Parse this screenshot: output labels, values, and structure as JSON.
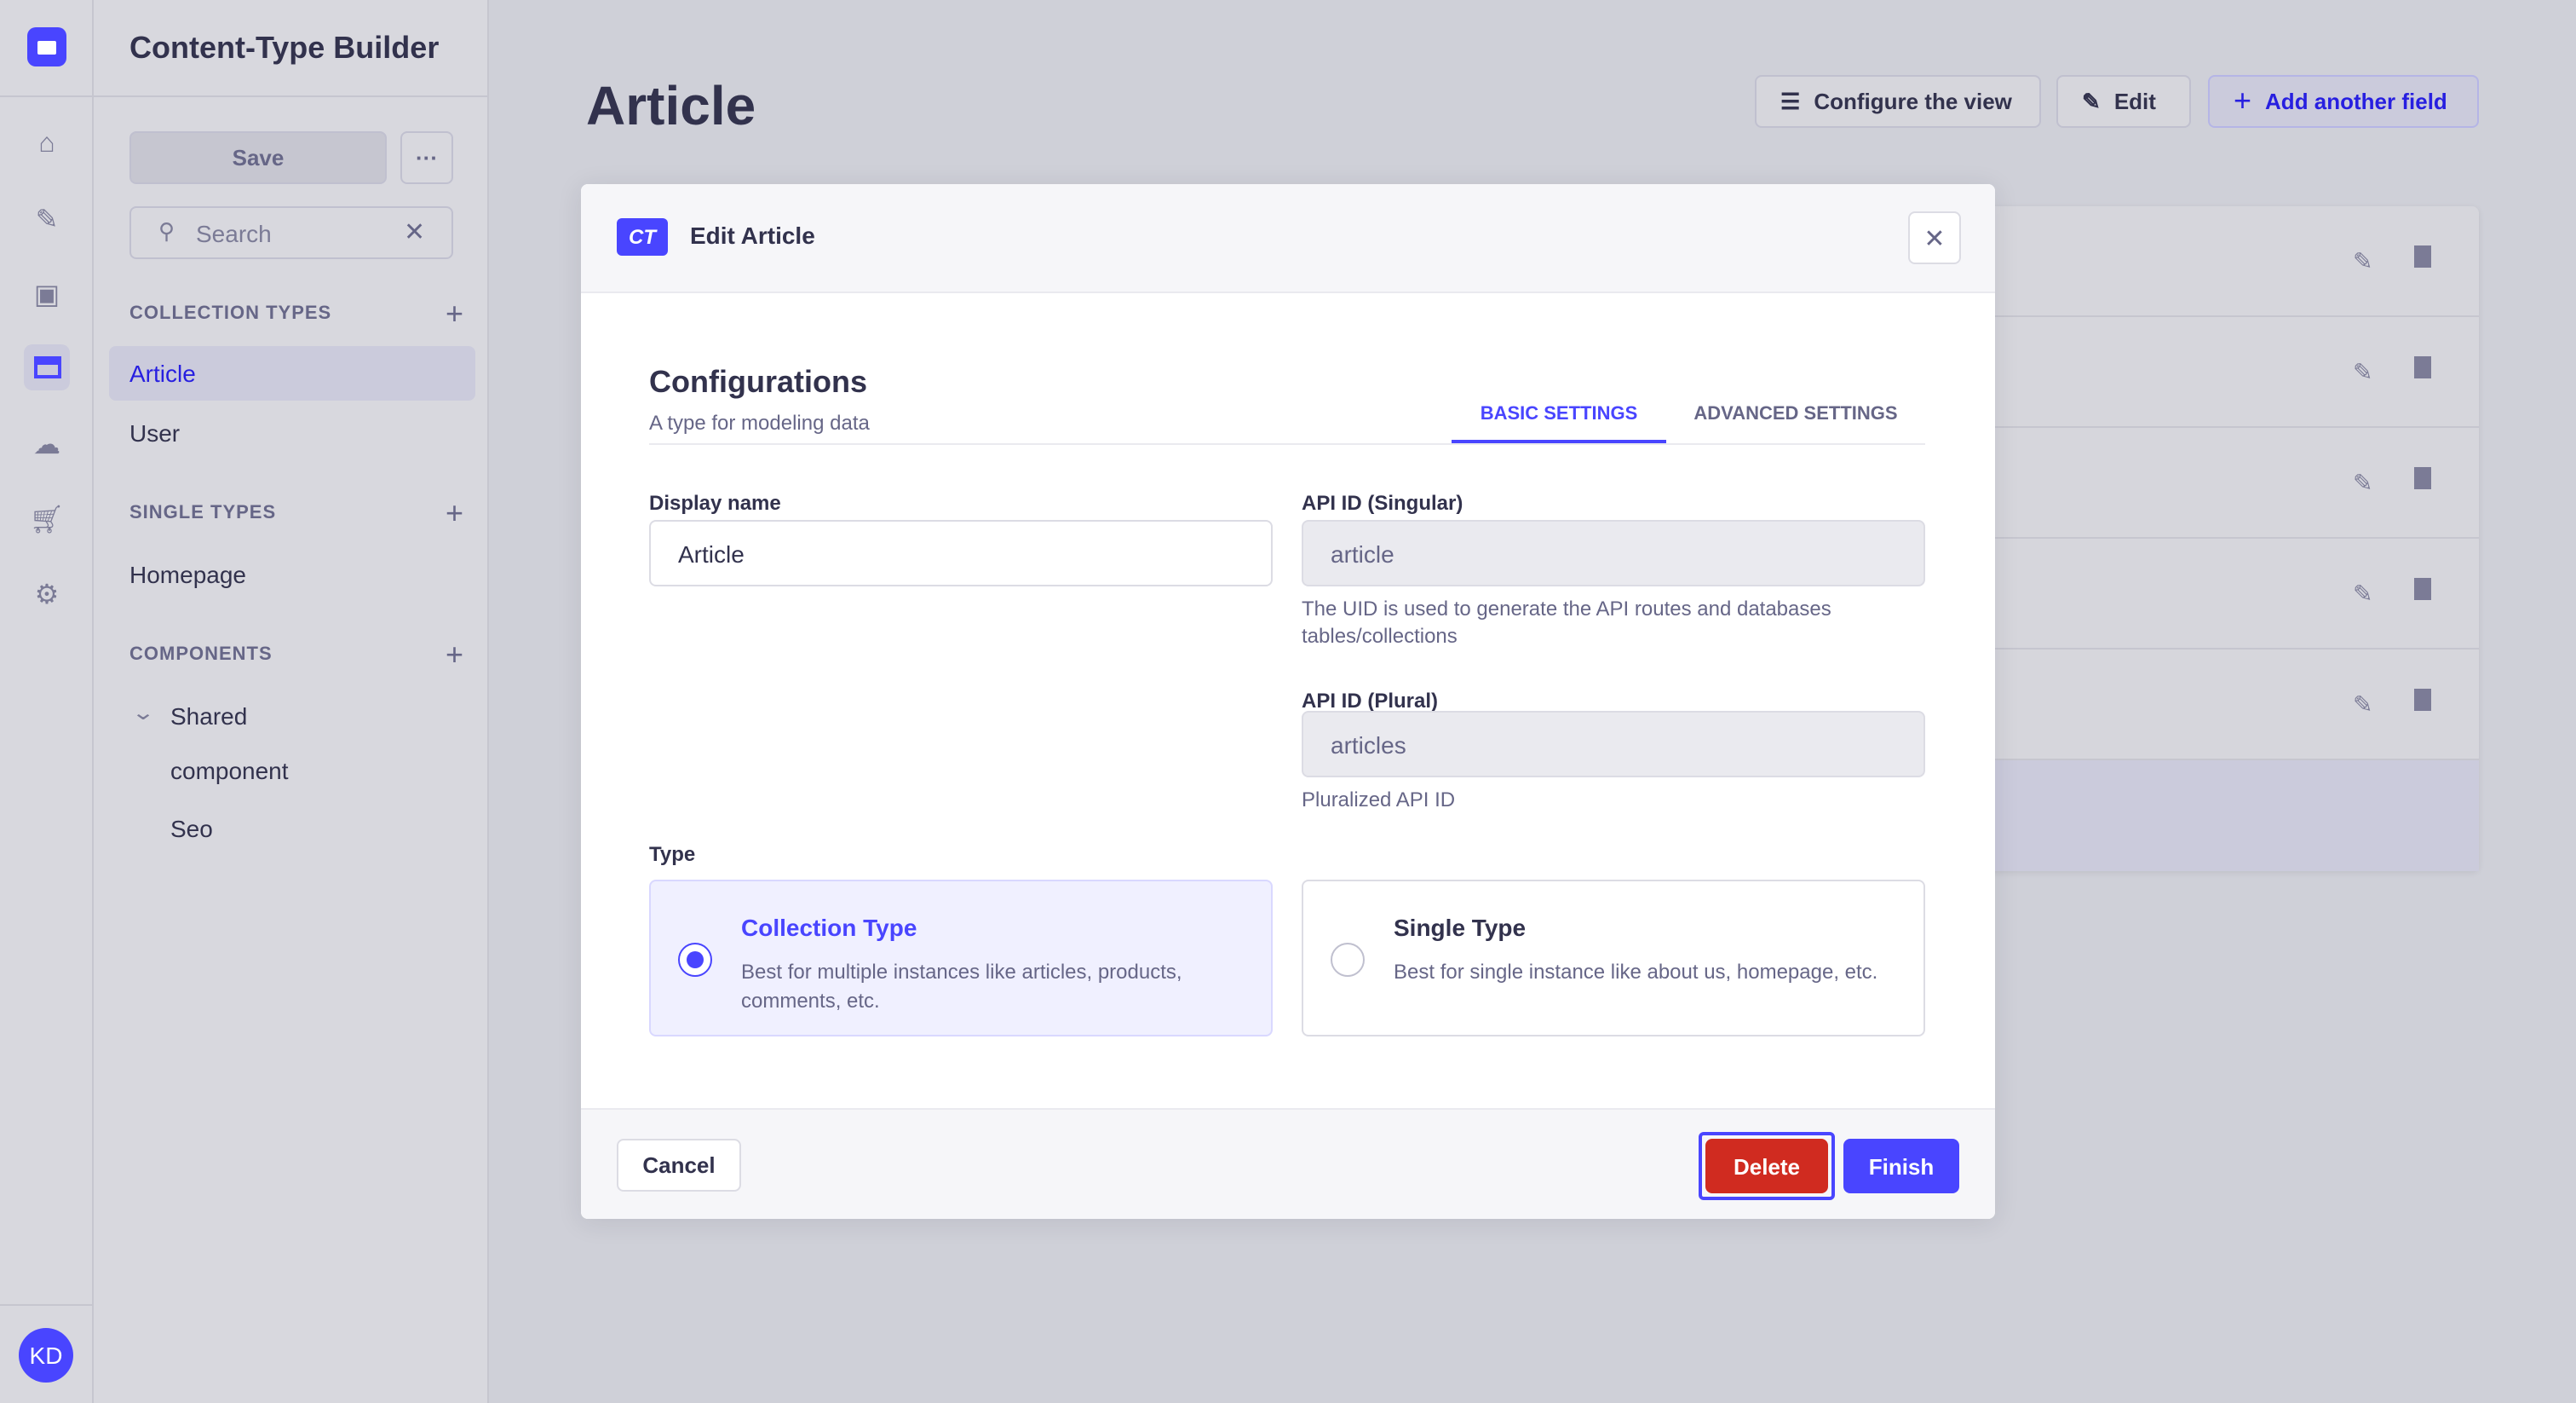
{
  "rail": {
    "avatar_initials": "KD",
    "icons": [
      "strapi-logo-icon",
      "home-icon",
      "feather-icon",
      "media-icon",
      "layout-icon",
      "cloud-icon",
      "cart-icon",
      "gear-icon"
    ]
  },
  "subnav": {
    "title": "Content-Type Builder",
    "save_label": "Save",
    "more_label": "···",
    "search_placeholder": "Search",
    "collection_types": {
      "label": "COLLECTION TYPES",
      "items": [
        "Article",
        "User"
      ]
    },
    "single_types": {
      "label": "SINGLE TYPES",
      "items": [
        "Homepage"
      ]
    },
    "components": {
      "label": "COMPONENTS",
      "group": "Shared",
      "items": [
        "component",
        "Seo"
      ]
    }
  },
  "main": {
    "title": "Article",
    "configure_label": "Configure the view",
    "edit_label": "Edit",
    "add_field_label": "Add another field"
  },
  "modal": {
    "badge": "CT",
    "title": "Edit Article",
    "section_title": "Configurations",
    "section_subtitle": "A type for modeling data",
    "tabs": [
      "BASIC SETTINGS",
      "ADVANCED SETTINGS"
    ],
    "active_tab": "BASIC SETTINGS",
    "display_name": {
      "label": "Display name",
      "value": "Article"
    },
    "api_singular": {
      "label": "API ID (Singular)",
      "value": "article",
      "hint": "The UID is used to generate the API routes and databases tables/collections"
    },
    "api_plural": {
      "label": "API ID (Plural)",
      "value": "articles",
      "hint": "Pluralized API ID"
    },
    "type_label": "Type",
    "types": [
      {
        "title": "Collection Type",
        "desc": "Best for multiple instances like articles, products, comments, etc.",
        "selected": true
      },
      {
        "title": "Single Type",
        "desc": "Best for single instance like about us, homepage, etc.",
        "selected": false
      }
    ],
    "cancel_label": "Cancel",
    "delete_label": "Delete",
    "finish_label": "Finish"
  },
  "colors": {
    "primary": "#4945ff",
    "danger": "#d02b20",
    "text": "#32324d",
    "muted": "#666687"
  }
}
